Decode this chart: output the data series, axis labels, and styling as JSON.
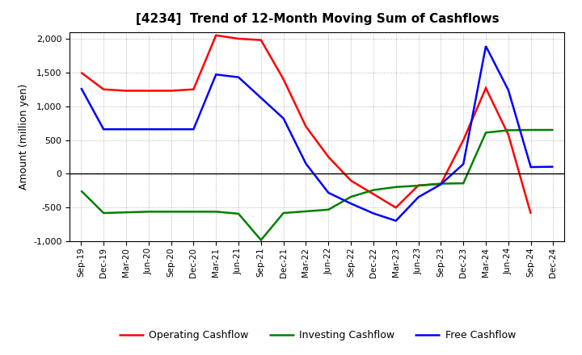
{
  "title": "[4234]  Trend of 12-Month Moving Sum of Cashflows",
  "ylabel": "Amount (million yen)",
  "ylim": [
    -1000,
    2100
  ],
  "yticks": [
    -1000,
    -500,
    0,
    500,
    1000,
    1500,
    2000
  ],
  "x_labels": [
    "Sep-19",
    "Dec-19",
    "Mar-20",
    "Jun-20",
    "Sep-20",
    "Dec-20",
    "Mar-21",
    "Jun-21",
    "Sep-21",
    "Dec-21",
    "Mar-22",
    "Jun-22",
    "Sep-22",
    "Dec-22",
    "Mar-23",
    "Jun-23",
    "Sep-23",
    "Dec-23",
    "Mar-24",
    "Jun-24",
    "Sep-24",
    "Dec-24"
  ],
  "operating": [
    1500,
    1250,
    1230,
    1230,
    1230,
    1250,
    2050,
    2000,
    1980,
    1400,
    700,
    250,
    -100,
    -300,
    -500,
    -170,
    -150,
    500,
    1270,
    580,
    -590,
    null
  ],
  "investing": [
    -250,
    -580,
    -570,
    -560,
    -560,
    -560,
    -560,
    -590,
    -980,
    -580,
    -555,
    -530,
    -340,
    -240,
    -195,
    -175,
    -145,
    -140,
    610,
    645,
    650,
    650
  ],
  "free": [
    1270,
    660,
    660,
    660,
    660,
    660,
    1470,
    1430,
    null,
    820,
    150,
    -280,
    -440,
    -585,
    -695,
    -345,
    -155,
    145,
    1890,
    1240,
    100,
    105
  ],
  "color_operating": "#ff0000",
  "color_investing": "#008000",
  "color_free": "#0000ff",
  "legend_labels": [
    "Operating Cashflow",
    "Investing Cashflow",
    "Free Cashflow"
  ],
  "bg_color": "#ffffff",
  "plot_bg_color": "#ffffff",
  "grid_color": "#999999",
  "linewidth": 1.8
}
